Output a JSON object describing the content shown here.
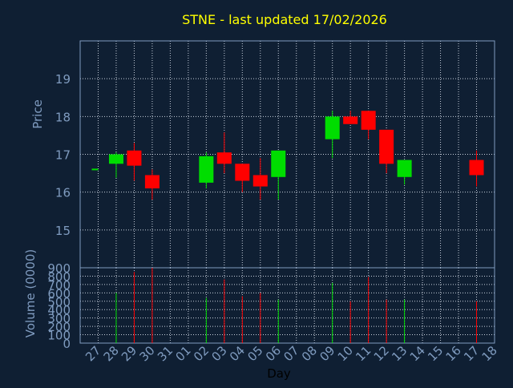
{
  "colors": {
    "background": "#0f1f33",
    "axis": "#7f9bbf",
    "grid": "#c8d0dc",
    "title": "#ffff00",
    "up": "#00dd00",
    "down": "#ff0000",
    "label": "#7f9bbf"
  },
  "chart_data": [
    {
      "type": "candlestick",
      "title": "STNE - last updated 17/02/2026",
      "ylabel": "Price",
      "ylim": [
        14,
        20
      ],
      "yticks": [
        15,
        16,
        17,
        18,
        19
      ],
      "grid": true,
      "x_domain": [
        0,
        22
      ],
      "xticklabels": [
        "27",
        "28",
        "29",
        "30",
        "31",
        "01",
        "02",
        "03",
        "04",
        "05",
        "06",
        "07",
        "08",
        "09",
        "10",
        "11",
        "12",
        "13",
        "14",
        "15",
        "16",
        "17",
        "18"
      ],
      "candles": [
        {
          "day": "27",
          "i": 0,
          "open": 16.6,
          "high": 16.6,
          "low": 16.6,
          "close": 16.6
        },
        {
          "day": "28",
          "i": 1,
          "open": 16.75,
          "high": 17.05,
          "low": 16.38,
          "close": 17.0
        },
        {
          "day": "29",
          "i": 2,
          "open": 17.1,
          "high": 17.3,
          "low": 16.3,
          "close": 16.7
        },
        {
          "day": "30",
          "i": 3,
          "open": 16.45,
          "high": 16.6,
          "low": 15.8,
          "close": 16.1
        },
        {
          "day": "02",
          "i": 6,
          "open": 16.25,
          "high": 17.05,
          "low": 16.1,
          "close": 16.95
        },
        {
          "day": "03",
          "i": 7,
          "open": 17.05,
          "high": 17.58,
          "low": 16.5,
          "close": 16.75
        },
        {
          "day": "04",
          "i": 8,
          "open": 16.75,
          "high": 16.75,
          "low": 16.0,
          "close": 16.3
        },
        {
          "day": "05",
          "i": 9,
          "open": 16.45,
          "high": 16.9,
          "low": 15.8,
          "close": 16.15
        },
        {
          "day": "06",
          "i": 10,
          "open": 16.4,
          "high": 17.1,
          "low": 15.8,
          "close": 17.1
        },
        {
          "day": "09",
          "i": 13,
          "open": 17.4,
          "high": 18.15,
          "low": 16.9,
          "close": 18.0
        },
        {
          "day": "10",
          "i": 14,
          "open": 18.0,
          "high": 18.15,
          "low": 17.8,
          "close": 17.8
        },
        {
          "day": "11",
          "i": 15,
          "open": 18.15,
          "high": 18.15,
          "low": 17.4,
          "close": 17.65
        },
        {
          "day": "12",
          "i": 16,
          "open": 17.65,
          "high": 17.65,
          "low": 16.5,
          "close": 16.75
        },
        {
          "day": "13",
          "i": 17,
          "open": 16.4,
          "high": 16.85,
          "low": 16.2,
          "close": 16.85
        },
        {
          "day": "17",
          "i": 21,
          "open": 16.85,
          "high": 17.1,
          "low": 16.15,
          "close": 16.45
        }
      ]
    },
    {
      "type": "bar",
      "ylabel": "Volume (0000)",
      "xlabel": "Day",
      "ylim": [
        0,
        900
      ],
      "yticks": [
        0,
        100,
        200,
        300,
        400,
        500,
        600,
        700,
        800,
        900
      ],
      "grid": true,
      "bars": [
        {
          "day": "28",
          "i": 1,
          "value": 600,
          "color": "up"
        },
        {
          "day": "29",
          "i": 2,
          "value": 850,
          "color": "down"
        },
        {
          "day": "30",
          "i": 3,
          "value": 900,
          "color": "down"
        },
        {
          "day": "02",
          "i": 6,
          "value": 540,
          "color": "up"
        },
        {
          "day": "03",
          "i": 7,
          "value": 760,
          "color": "down"
        },
        {
          "day": "04",
          "i": 8,
          "value": 560,
          "color": "down"
        },
        {
          "day": "05",
          "i": 9,
          "value": 600,
          "color": "down"
        },
        {
          "day": "06",
          "i": 10,
          "value": 520,
          "color": "up"
        },
        {
          "day": "09",
          "i": 13,
          "value": 720,
          "color": "up"
        },
        {
          "day": "10",
          "i": 14,
          "value": 500,
          "color": "down"
        },
        {
          "day": "11",
          "i": 15,
          "value": 790,
          "color": "down"
        },
        {
          "day": "12",
          "i": 16,
          "value": 520,
          "color": "down"
        },
        {
          "day": "13",
          "i": 17,
          "value": 520,
          "color": "up"
        },
        {
          "day": "17",
          "i": 21,
          "value": 500,
          "color": "down"
        }
      ]
    }
  ]
}
